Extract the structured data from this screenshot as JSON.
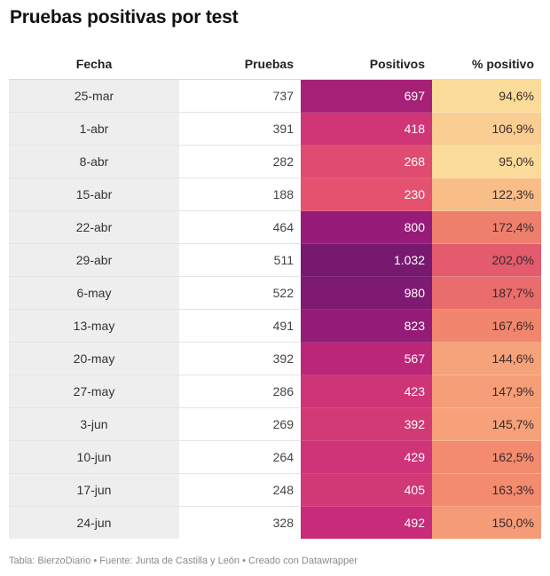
{
  "title": "Pruebas positivas por test",
  "headers": {
    "fecha": "Fecha",
    "pruebas": "Pruebas",
    "positivos": "Positivos",
    "pct": "% positivo"
  },
  "footer": "Tabla: BierzoDiario • Fuente: Junta de Castilla y León • Creado con Datawrapper",
  "colors": {
    "positivos": [
      "#771a6f",
      "#9c1c78",
      "#c72a79",
      "#e45270"
    ],
    "pct": [
      "#fbdb9a",
      "#f9b483",
      "#f2876d",
      "#e35b6c"
    ]
  },
  "chart_data": {
    "type": "table",
    "columns": [
      "Fecha",
      "Pruebas",
      "Positivos",
      "% positivo"
    ],
    "rows": [
      {
        "fecha": "25-mar",
        "pruebas": 737,
        "positivos": 697,
        "pct": 94.6,
        "pruebas_txt": "737",
        "positivos_txt": "697",
        "pct_txt": "94,6%"
      },
      {
        "fecha": "1-abr",
        "pruebas": 391,
        "positivos": 418,
        "pct": 106.9,
        "pruebas_txt": "391",
        "positivos_txt": "418",
        "pct_txt": "106,9%"
      },
      {
        "fecha": "8-abr",
        "pruebas": 282,
        "positivos": 268,
        "pct": 95.0,
        "pruebas_txt": "282",
        "positivos_txt": "268",
        "pct_txt": "95,0%"
      },
      {
        "fecha": "15-abr",
        "pruebas": 188,
        "positivos": 230,
        "pct": 122.3,
        "pruebas_txt": "188",
        "positivos_txt": "230",
        "pct_txt": "122,3%"
      },
      {
        "fecha": "22-abr",
        "pruebas": 464,
        "positivos": 800,
        "pct": 172.4,
        "pruebas_txt": "464",
        "positivos_txt": "800",
        "pct_txt": "172,4%"
      },
      {
        "fecha": "29-abr",
        "pruebas": 511,
        "positivos": 1032,
        "pct": 202.0,
        "pruebas_txt": "511",
        "positivos_txt": "1.032",
        "pct_txt": "202,0%"
      },
      {
        "fecha": "6-may",
        "pruebas": 522,
        "positivos": 980,
        "pct": 187.7,
        "pruebas_txt": "522",
        "positivos_txt": "980",
        "pct_txt": "187,7%"
      },
      {
        "fecha": "13-may",
        "pruebas": 491,
        "positivos": 823,
        "pct": 167.6,
        "pruebas_txt": "491",
        "positivos_txt": "823",
        "pct_txt": "167,6%"
      },
      {
        "fecha": "20-may",
        "pruebas": 392,
        "positivos": 567,
        "pct": 144.6,
        "pruebas_txt": "392",
        "positivos_txt": "567",
        "pct_txt": "144,6%"
      },
      {
        "fecha": "27-may",
        "pruebas": 286,
        "positivos": 423,
        "pct": 147.9,
        "pruebas_txt": "286",
        "positivos_txt": "423",
        "pct_txt": "147,9%"
      },
      {
        "fecha": "3-jun",
        "pruebas": 269,
        "positivos": 392,
        "pct": 145.7,
        "pruebas_txt": "269",
        "positivos_txt": "392",
        "pct_txt": "145,7%"
      },
      {
        "fecha": "10-jun",
        "pruebas": 264,
        "positivos": 429,
        "pct": 162.5,
        "pruebas_txt": "264",
        "positivos_txt": "429",
        "pct_txt": "162,5%"
      },
      {
        "fecha": "17-jun",
        "pruebas": 248,
        "positivos": 405,
        "pct": 163.3,
        "pruebas_txt": "248",
        "positivos_txt": "405",
        "pct_txt": "163,3%"
      },
      {
        "fecha": "24-jun",
        "pruebas": 328,
        "positivos": 492,
        "pct": 150.0,
        "pruebas_txt": "328",
        "positivos_txt": "492",
        "pct_txt": "150,0%"
      }
    ]
  }
}
